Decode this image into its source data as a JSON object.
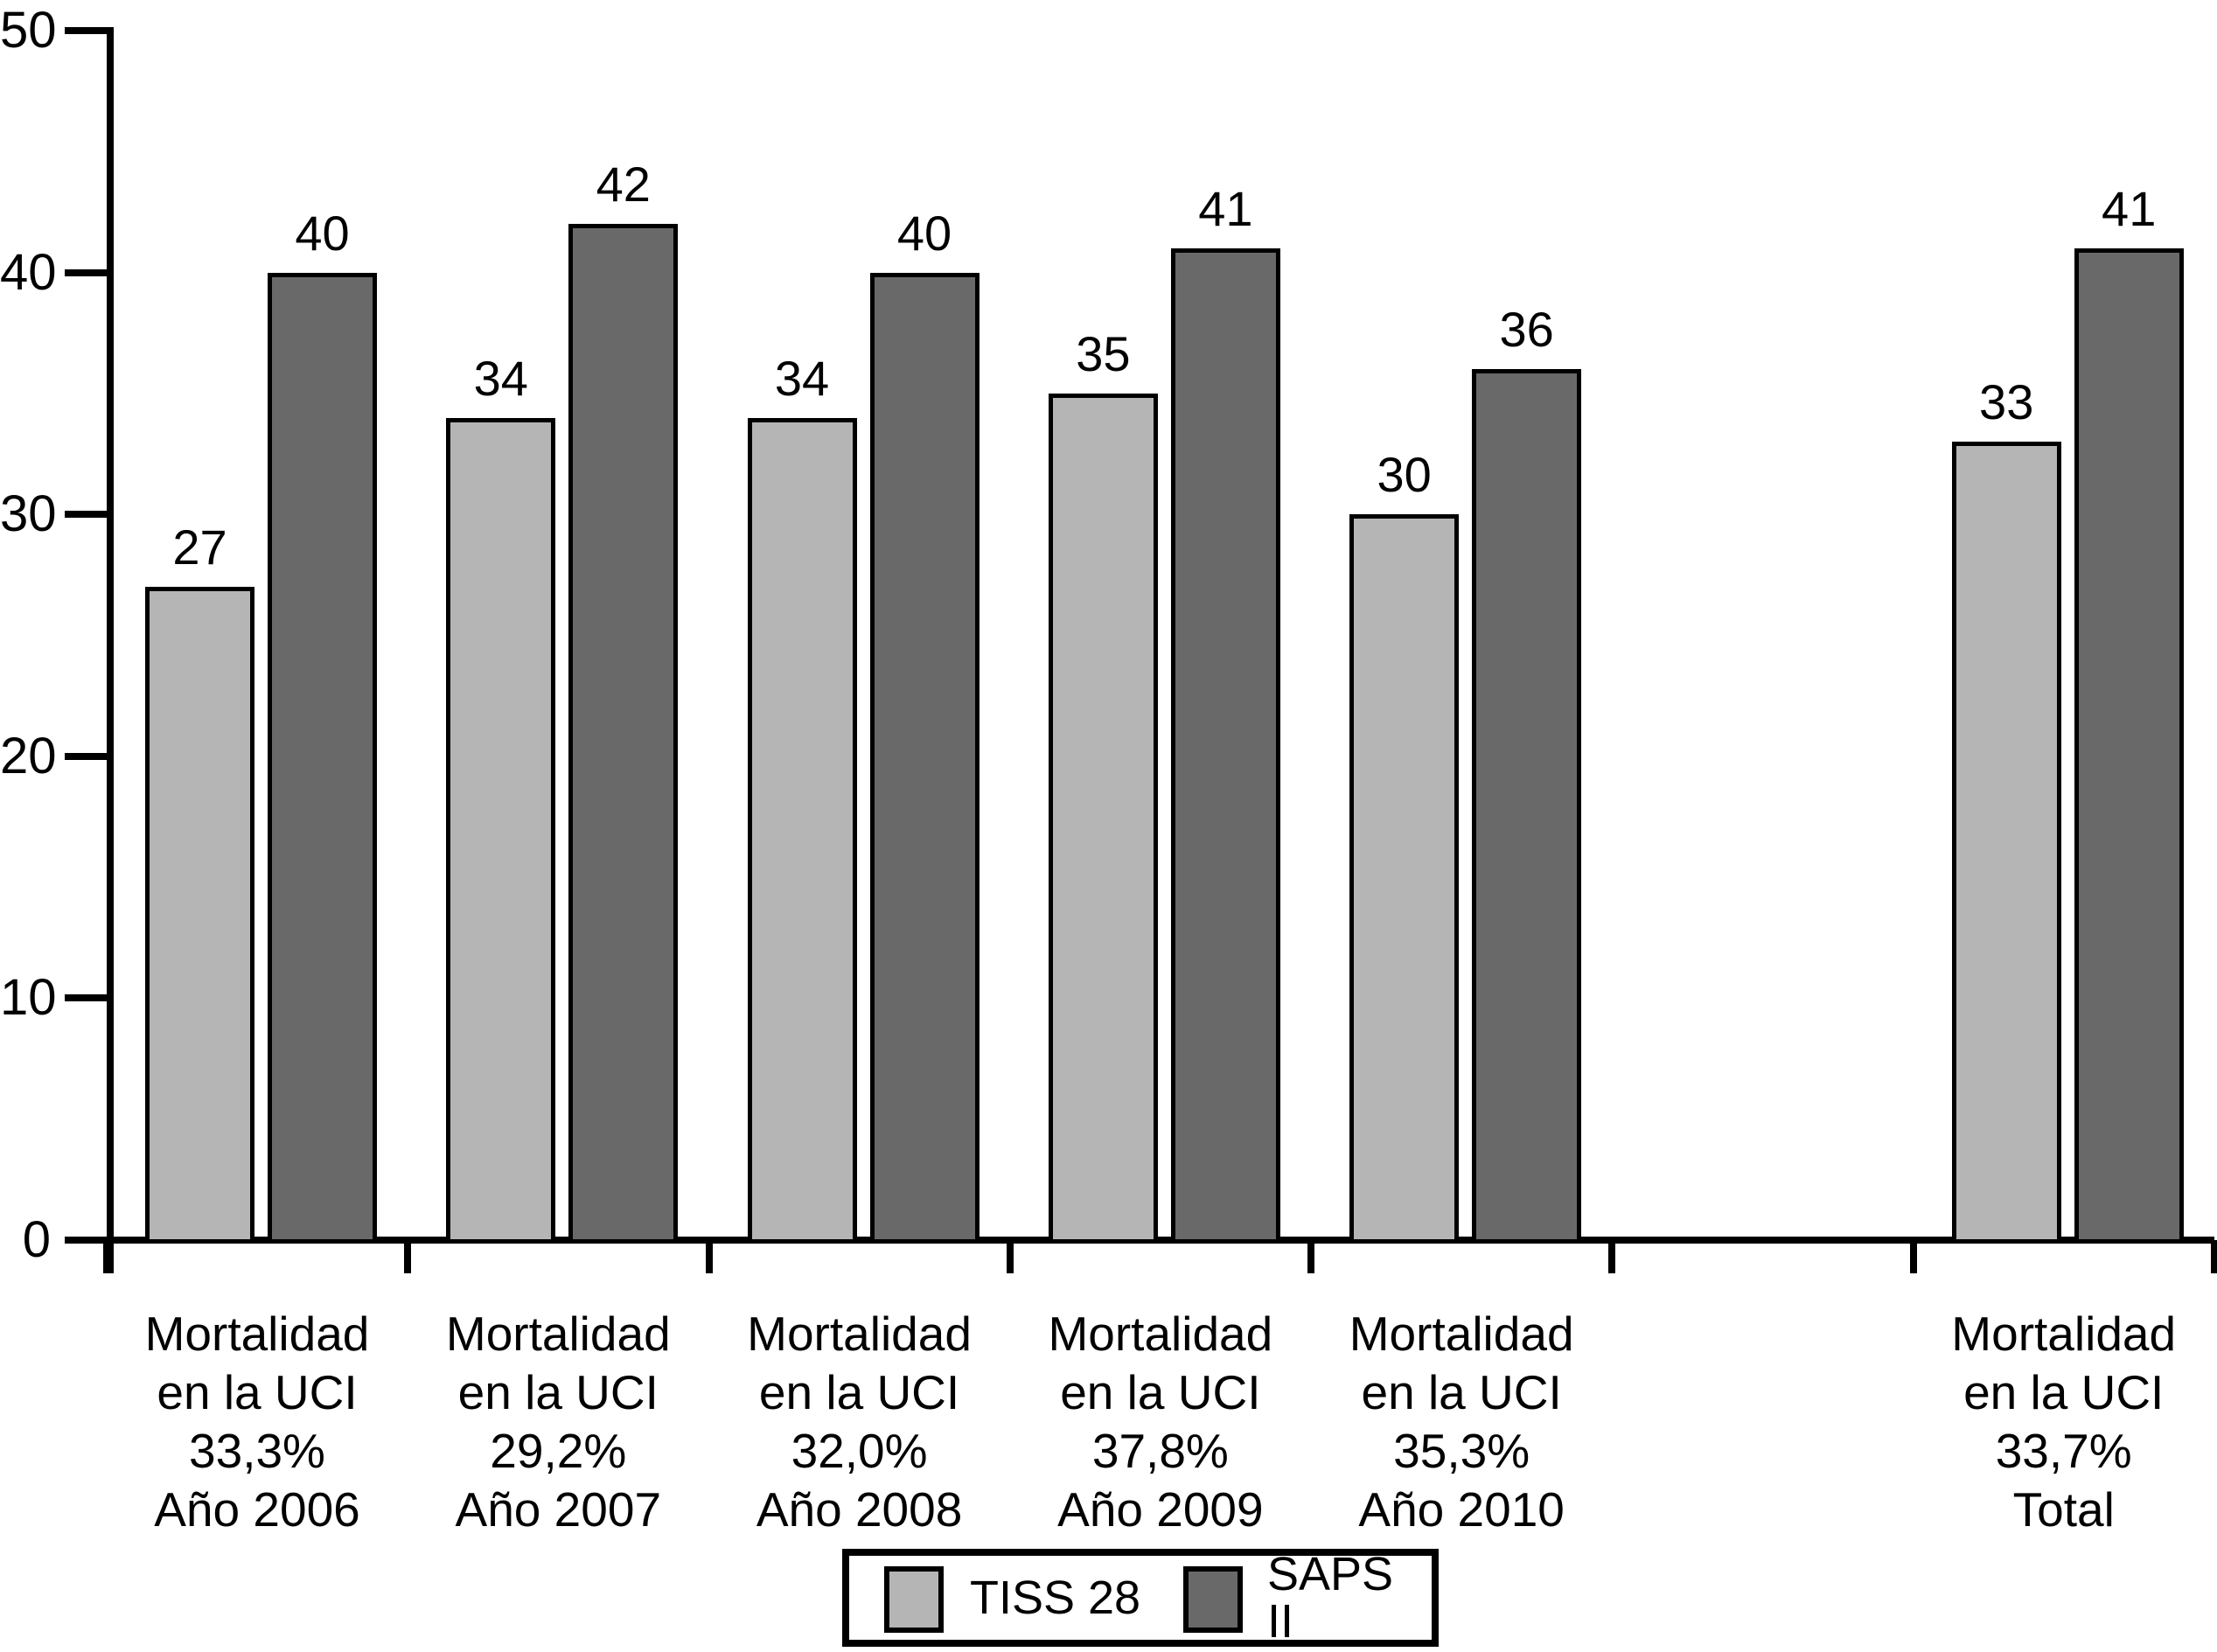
{
  "chart_data": {
    "type": "bar",
    "title": "",
    "xlabel": "",
    "ylabel": "",
    "ylim": [
      0,
      50
    ],
    "yticks": [
      0,
      10,
      20,
      30,
      40,
      50
    ],
    "grid": false,
    "legend_position": "bottom",
    "bar_value_labels": true,
    "empty_slot_before_last_group": true,
    "categories": [
      [
        "Mortalidad",
        "en la UCI",
        "33,3%",
        "Año 2006"
      ],
      [
        "Mortalidad",
        "en la UCI",
        "29,2%",
        "Año 2007"
      ],
      [
        "Mortalidad",
        "en la UCI",
        "32,0%",
        "Año 2008"
      ],
      [
        "Mortalidad",
        "en la UCI",
        "37,8%",
        "Año 2009"
      ],
      [
        "Mortalidad",
        "en la UCI",
        "35,3%",
        "Año 2010"
      ],
      [
        "Mortalidad",
        "en la UCI",
        "33,7%",
        "Total"
      ]
    ],
    "series": [
      {
        "name": "TISS 28",
        "color": "#b5b5b5",
        "values": [
          27,
          34,
          34,
          35,
          30,
          33
        ]
      },
      {
        "name": "SAPS II",
        "color": "#696969",
        "values": [
          40,
          42,
          40,
          41,
          36,
          41
        ]
      }
    ]
  },
  "legend": {
    "items": [
      {
        "label": "TISS 28",
        "color": "#b5b5b5"
      },
      {
        "label": "SAPS II",
        "color": "#696969"
      }
    ]
  }
}
